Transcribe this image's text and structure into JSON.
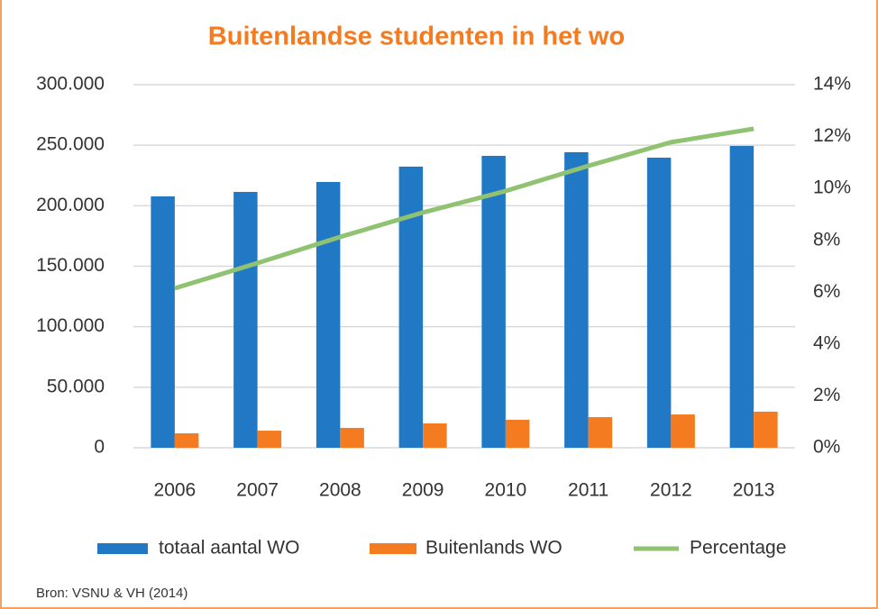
{
  "chart_data": {
    "type": "bar_line",
    "title": "Buitenlandse studenten in het wo",
    "source": "Bron: VSNU & VH (2014)",
    "categories": [
      "2006",
      "2007",
      "2008",
      "2009",
      "2010",
      "2011",
      "2012",
      "2013"
    ],
    "series": [
      {
        "name": "totaal aantal WO",
        "type": "bar",
        "color": "#2179c5",
        "values": [
          207700,
          211400,
          219600,
          232300,
          241200,
          244200,
          239700,
          249400
        ]
      },
      {
        "name": "Buitenlands WO",
        "type": "bar",
        "color": "#f47b20",
        "values": [
          11900,
          14100,
          16400,
          20100,
          23100,
          25300,
          27500,
          29800
        ]
      },
      {
        "name": "Percentage",
        "type": "line",
        "axis": "y2",
        "color": "#8fc271",
        "values": [
          6.15,
          7.12,
          8.13,
          9.07,
          9.9,
          10.87,
          11.78,
          12.3
        ]
      }
    ],
    "ylim": [
      0,
      300000
    ],
    "yticks": [
      0,
      {
        "value": 50000,
        "label": "50.000"
      },
      {
        "value": 100000,
        "label": "100.000"
      },
      {
        "value": 150000,
        "label": "150.000"
      },
      {
        "value": 200000,
        "label": "200.000"
      },
      {
        "value": 250000,
        "label": "250.000"
      },
      {
        "value": 300000,
        "label": "300.000"
      }
    ],
    "y2lim": [
      0,
      14
    ],
    "y2ticks": [
      {
        "value": 0,
        "label": "0%"
      },
      {
        "value": 2,
        "label": "2%"
      },
      {
        "value": 4,
        "label": "4%"
      },
      {
        "value": 6,
        "label": "6%"
      },
      {
        "value": 8,
        "label": "8%"
      },
      {
        "value": 10,
        "label": "10%"
      },
      {
        "value": 12,
        "label": "12%"
      },
      {
        "value": 14,
        "label": "14%"
      }
    ],
    "grid": true,
    "legend": "bottom"
  }
}
